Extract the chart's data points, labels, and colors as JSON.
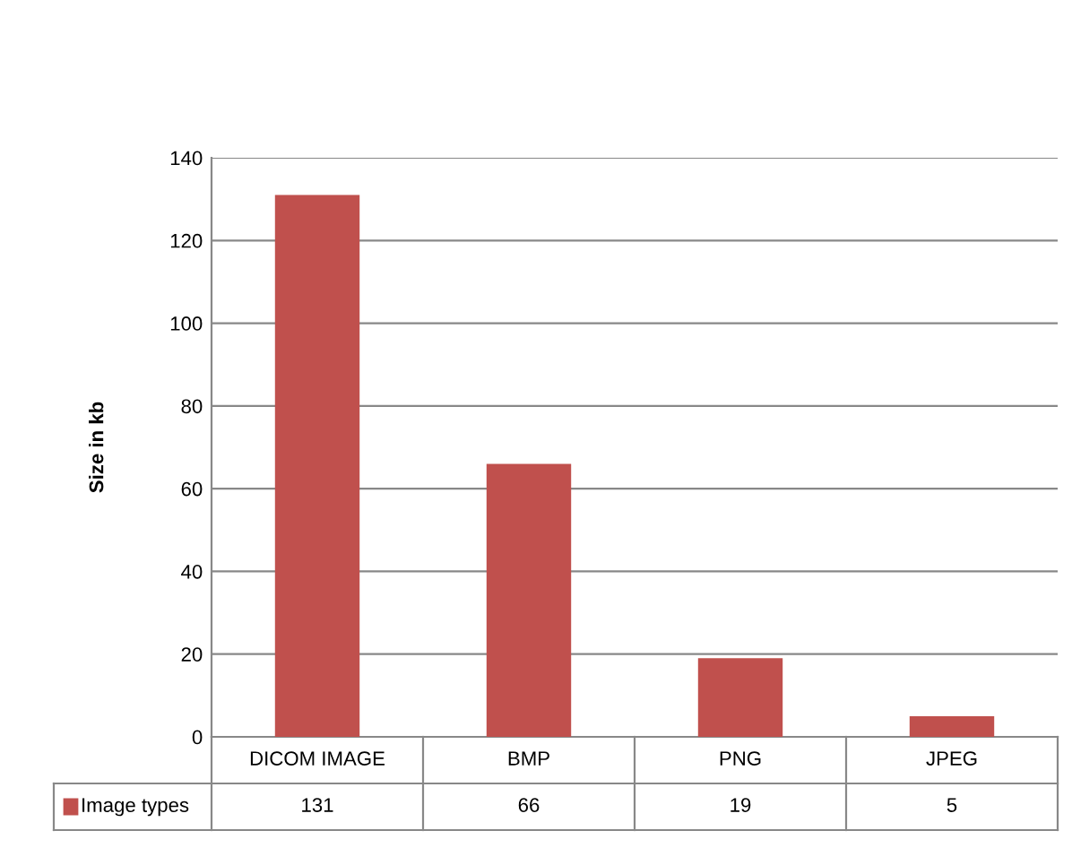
{
  "chart_data": {
    "type": "bar",
    "ylabel": "Size in kb",
    "categories": [
      "DICOM IMAGE",
      "BMP",
      "PNG",
      "JPEG"
    ],
    "series": [
      {
        "name": "Image types",
        "color": "#c0504d",
        "values": [
          131,
          66,
          19,
          5
        ]
      }
    ],
    "ylim": [
      0,
      140
    ],
    "yticks": [
      0,
      20,
      40,
      60,
      80,
      100,
      120,
      140
    ],
    "grid": "y",
    "data_labels": true,
    "legend": "bottom"
  }
}
